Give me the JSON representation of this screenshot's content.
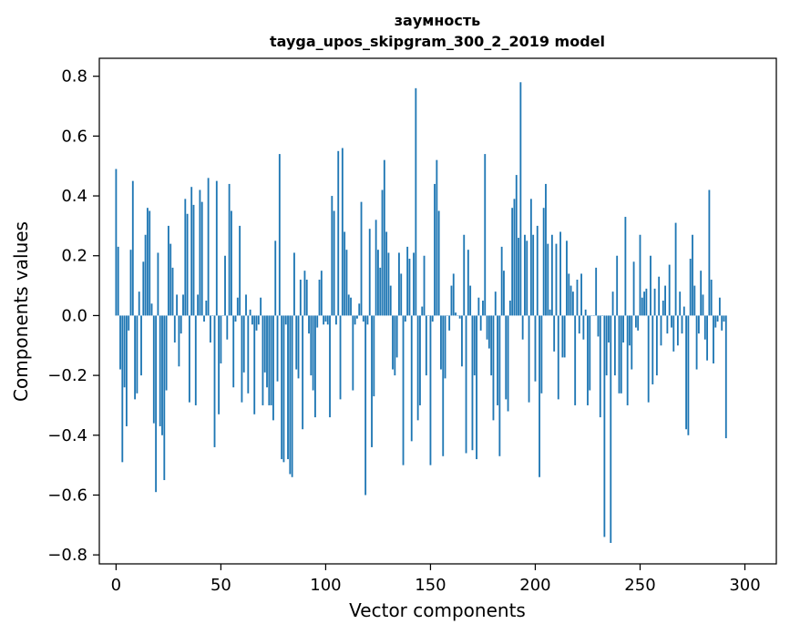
{
  "chart_data": {
    "type": "bar",
    "title": {
      "line1": "заумность",
      "line2": "tayga_upos_skipgram_300_2_2019 model"
    },
    "xlabel": "Vector components",
    "ylabel": "Components values",
    "xlim": [
      -8,
      315
    ],
    "ylim": [
      -0.83,
      0.86
    ],
    "xticks": [
      0,
      50,
      100,
      150,
      200,
      250,
      300
    ],
    "yticks": [
      -0.8,
      -0.6,
      -0.4,
      -0.2,
      0.0,
      0.2,
      0.4,
      0.6,
      0.8
    ],
    "ytick_labels": [
      "−0.8",
      "−0.6",
      "−0.4",
      "−0.2",
      "0.0",
      "0.2",
      "0.4",
      "0.6",
      "0.8"
    ],
    "grid": false,
    "bar_color": "#1f77b4",
    "values": [
      0.49,
      0.23,
      -0.18,
      -0.49,
      -0.24,
      -0.37,
      -0.05,
      0.22,
      0.45,
      -0.28,
      -0.26,
      0.08,
      -0.2,
      0.18,
      0.27,
      0.36,
      0.35,
      0.04,
      -0.36,
      -0.59,
      0.21,
      -0.37,
      -0.4,
      -0.55,
      -0.25,
      0.3,
      0.24,
      0.16,
      -0.09,
      0.07,
      -0.17,
      -0.06,
      0.07,
      0.39,
      0.34,
      -0.29,
      0.43,
      0.37,
      -0.3,
      0.07,
      0.42,
      0.38,
      -0.02,
      0.05,
      0.46,
      -0.09,
      0.0,
      -0.44,
      0.45,
      -0.33,
      -0.16,
      0.0,
      0.2,
      -0.08,
      0.44,
      0.35,
      -0.24,
      -0.02,
      0.06,
      0.3,
      -0.29,
      -0.19,
      0.07,
      -0.26,
      0.02,
      -0.03,
      -0.33,
      -0.05,
      -0.03,
      0.06,
      -0.3,
      -0.19,
      -0.24,
      -0.3,
      -0.3,
      -0.35,
      0.25,
      -0.22,
      0.54,
      -0.48,
      -0.49,
      -0.03,
      -0.48,
      -0.53,
      -0.54,
      0.21,
      -0.18,
      -0.21,
      0.12,
      -0.38,
      0.15,
      0.12,
      -0.06,
      -0.2,
      -0.25,
      -0.34,
      -0.04,
      0.12,
      0.15,
      -0.03,
      -0.02,
      -0.03,
      -0.34,
      0.4,
      0.35,
      -0.03,
      0.55,
      -0.28,
      0.56,
      0.28,
      0.22,
      0.07,
      0.06,
      -0.25,
      -0.03,
      -0.01,
      0.04,
      0.38,
      -0.02,
      -0.6,
      -0.03,
      0.29,
      -0.44,
      -0.27,
      0.32,
      0.22,
      0.16,
      0.42,
      0.52,
      0.28,
      0.21,
      0.1,
      -0.18,
      -0.2,
      -0.14,
      0.21,
      0.14,
      -0.5,
      -0.02,
      0.23,
      0.19,
      -0.42,
      0.21,
      0.76,
      -0.35,
      -0.3,
      0.03,
      0.2,
      -0.2,
      0.0,
      -0.5,
      -0.02,
      0.44,
      0.52,
      0.35,
      -0.18,
      -0.47,
      -0.21,
      0.0,
      -0.05,
      0.1,
      0.14,
      0.01,
      0.0,
      -0.01,
      -0.17,
      0.27,
      -0.46,
      0.22,
      0.1,
      -0.45,
      -0.2,
      -0.48,
      0.06,
      -0.05,
      0.05,
      0.54,
      -0.08,
      -0.11,
      -0.2,
      -0.35,
      0.08,
      -0.3,
      -0.47,
      0.23,
      0.15,
      -0.28,
      -0.32,
      0.05,
      0.36,
      0.39,
      0.47,
      0.26,
      0.78,
      -0.08,
      0.27,
      0.25,
      -0.29,
      0.39,
      0.27,
      -0.22,
      0.3,
      -0.54,
      -0.26,
      0.36,
      0.44,
      0.24,
      0.02,
      0.27,
      -0.12,
      0.24,
      -0.28,
      0.28,
      -0.14,
      -0.14,
      0.25,
      0.14,
      0.1,
      0.08,
      -0.3,
      0.12,
      -0.06,
      0.14,
      -0.08,
      0.02,
      -0.3,
      -0.25,
      0.0,
      0.0,
      0.16,
      -0.07,
      -0.34,
      0.0,
      -0.74,
      -0.2,
      -0.09,
      -0.76,
      0.08,
      -0.2,
      0.2,
      -0.26,
      -0.26,
      -0.09,
      0.33,
      -0.3,
      -0.1,
      -0.18,
      0.18,
      -0.04,
      -0.05,
      0.27,
      0.06,
      0.08,
      0.09,
      -0.29,
      0.2,
      -0.23,
      0.09,
      -0.2,
      0.13,
      -0.1,
      0.05,
      0.1,
      -0.06,
      0.17,
      -0.04,
      -0.12,
      0.31,
      -0.1,
      0.08,
      -0.06,
      0.03,
      -0.38,
      -0.4,
      0.19,
      0.27,
      0.1,
      -0.18,
      -0.06,
      0.15,
      0.07,
      -0.08,
      -0.15,
      0.42,
      0.12,
      -0.16,
      -0.04,
      -0.02,
      0.06,
      -0.05,
      -0.02,
      -0.41
    ]
  }
}
